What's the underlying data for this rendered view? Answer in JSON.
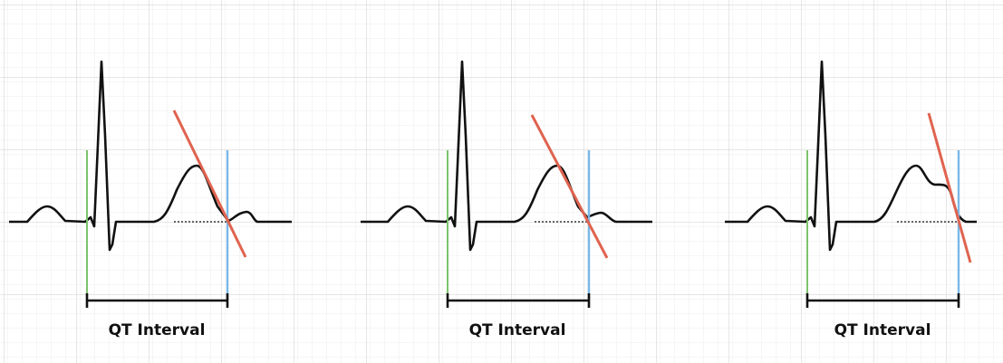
{
  "panels": [
    {
      "label": "QT Interval"
    },
    {
      "label": "QT Interval"
    },
    {
      "label": "QT Interval"
    }
  ]
}
